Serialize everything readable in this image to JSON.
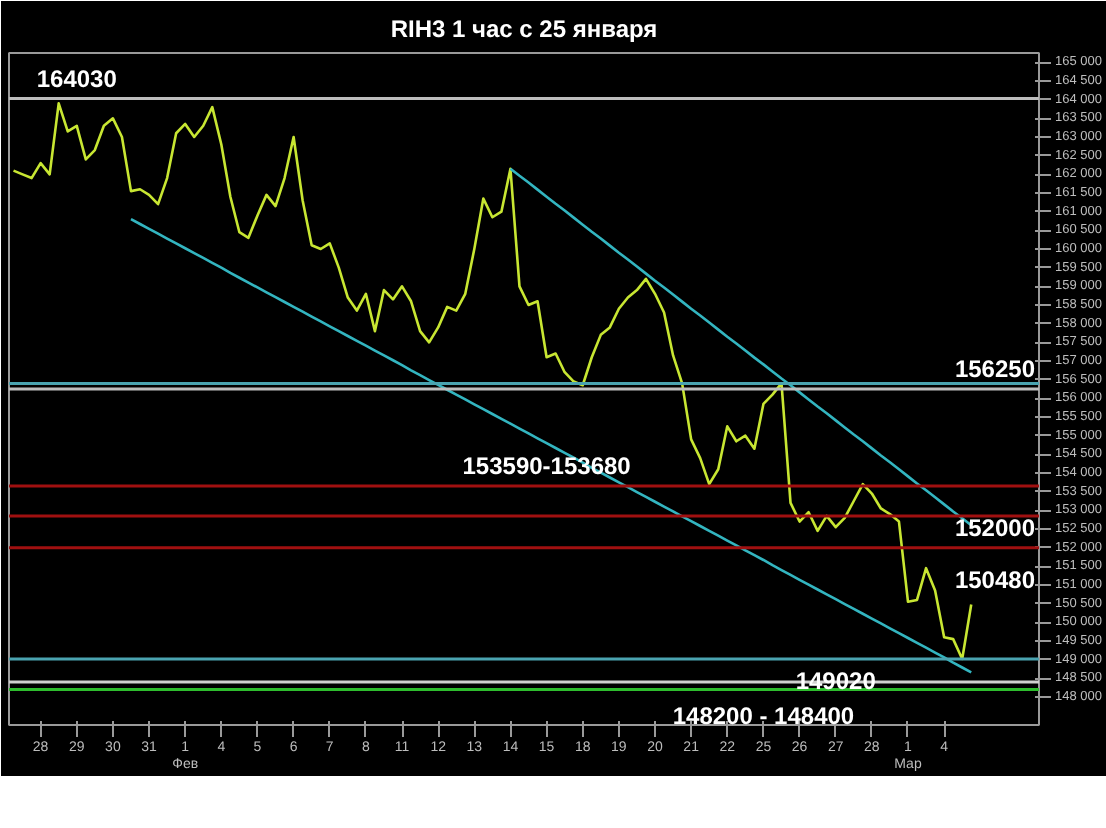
{
  "chart_data": {
    "type": "line",
    "title": "RIH3 1 час с 25 января",
    "categories": [
      null,
      null,
      null,
      "28",
      null,
      null,
      null,
      "29",
      null,
      null,
      null,
      "30",
      null,
      null,
      null,
      "31",
      null,
      null,
      null,
      "1\nФев",
      null,
      null,
      null,
      "4",
      null,
      null,
      null,
      "5",
      null,
      null,
      null,
      "6",
      null,
      null,
      null,
      "7",
      null,
      null,
      null,
      "8",
      null,
      null,
      null,
      "11",
      null,
      null,
      null,
      "12",
      null,
      null,
      null,
      "13",
      null,
      null,
      null,
      "14",
      null,
      null,
      null,
      "15",
      null,
      null,
      null,
      "18",
      null,
      null,
      null,
      "19",
      null,
      null,
      null,
      "20",
      null,
      null,
      null,
      "21",
      null,
      null,
      null,
      "22",
      null,
      null,
      null,
      "25",
      null,
      null,
      null,
      "26",
      null,
      null,
      null,
      "27",
      null,
      null,
      null,
      "28",
      null,
      null,
      null,
      "1\nМар",
      null,
      null,
      null,
      "4",
      null,
      null,
      null
    ],
    "ylim": [
      147250,
      165250
    ],
    "yticks": [
      {
        "value": 148000,
        "label": "148 000"
      },
      {
        "value": 148500,
        "label": "148 500"
      },
      {
        "value": 149000,
        "label": "149 000"
      },
      {
        "value": 149500,
        "label": "149 500"
      },
      {
        "value": 150000,
        "label": "150 000"
      },
      {
        "value": 150500,
        "label": "150 500"
      },
      {
        "value": 151000,
        "label": "151 000"
      },
      {
        "value": 151500,
        "label": "151 500"
      },
      {
        "value": 152000,
        "label": "152 000"
      },
      {
        "value": 152500,
        "label": "152 500"
      },
      {
        "value": 153000,
        "label": "153 000"
      },
      {
        "value": 153500,
        "label": "153 500"
      },
      {
        "value": 154000,
        "label": "154 000"
      },
      {
        "value": 154500,
        "label": "154 500"
      },
      {
        "value": 155000,
        "label": "155 000"
      },
      {
        "value": 155500,
        "label": "155 500"
      },
      {
        "value": 156000,
        "label": "156 000"
      },
      {
        "value": 156500,
        "label": "156 500"
      },
      {
        "value": 157000,
        "label": "157 000"
      },
      {
        "value": 157500,
        "label": "157 500"
      },
      {
        "value": 158000,
        "label": "158 000"
      },
      {
        "value": 158500,
        "label": "158 500"
      },
      {
        "value": 159000,
        "label": "159 000"
      },
      {
        "value": 159500,
        "label": "159 500"
      },
      {
        "value": 160000,
        "label": "160 000"
      },
      {
        "value": 160500,
        "label": "160 500"
      },
      {
        "value": 161000,
        "label": "161 000"
      },
      {
        "value": 161500,
        "label": "161 500"
      },
      {
        "value": 162000,
        "label": "162 000"
      },
      {
        "value": 162500,
        "label": "162 500"
      },
      {
        "value": 163000,
        "label": "163 000"
      },
      {
        "value": 163500,
        "label": "163 500"
      },
      {
        "value": 164000,
        "label": "164 000"
      },
      {
        "value": 164500,
        "label": "164 500"
      },
      {
        "value": 165000,
        "label": "165 000"
      }
    ],
    "series": [
      {
        "color": "#c8e632",
        "values": [
          162100,
          162000,
          161900,
          162300,
          162000,
          163900,
          163150,
          163300,
          162400,
          162650,
          163300,
          163500,
          163000,
          161550,
          161600,
          161450,
          161200,
          161900,
          163100,
          163350,
          163000,
          163300,
          163800,
          162800,
          161400,
          160450,
          160300,
          160900,
          161450,
          161150,
          161900,
          163000,
          161300,
          160100,
          160000,
          160150,
          159500,
          158700,
          158350,
          158800,
          157800,
          158900,
          158650,
          159000,
          158600,
          157800,
          157500,
          157900,
          158450,
          158350,
          158800,
          160000,
          161350,
          160850,
          161000,
          162150,
          159000,
          158500,
          158600,
          157100,
          157200,
          156700,
          156450,
          156350,
          157100,
          157700,
          157900,
          158400,
          158700,
          158900,
          159200,
          158800,
          158300,
          157150,
          156400,
          154900,
          154400,
          153700,
          154100,
          155250,
          154850,
          155000,
          154650,
          155850,
          156100,
          156400,
          153200,
          152700,
          152950,
          152450,
          152850,
          152550,
          152800,
          153250,
          153700,
          153450,
          153050,
          152900,
          152700,
          150550,
          150600,
          151450,
          150850,
          149600,
          149550,
          149020,
          150480
        ]
      },
      {
        "color": "#33b5c0",
        "values": [
          null,
          null,
          null,
          null,
          null,
          null,
          null,
          null,
          null,
          null,
          null,
          null,
          null,
          160800,
          160670,
          160540,
          160410,
          160280,
          160150,
          160020,
          159890,
          159760,
          159630,
          159500,
          159360,
          159230,
          159100,
          158970,
          158840,
          158710,
          158580,
          158450,
          158320,
          158190,
          158060,
          157930,
          157800,
          157670,
          157540,
          157410,
          157280,
          157150,
          157020,
          156890,
          156750,
          156620,
          156490,
          156360,
          156230,
          156100,
          155970,
          155840,
          155710,
          155580,
          155450,
          155320,
          155190,
          155060,
          154930,
          154800,
          154670,
          154540,
          154410,
          154280,
          154140,
          154010,
          153880,
          153750,
          153620,
          153490,
          153360,
          153230,
          153100,
          152970,
          152840,
          152710,
          152580,
          152450,
          152320,
          152190,
          152060,
          151930,
          151800,
          151670,
          151530,
          151400,
          151270,
          151140,
          151010,
          150880,
          150750,
          150620,
          150490,
          150360,
          150230,
          150100,
          149970,
          149840,
          149710,
          149580,
          149450,
          149320,
          149190,
          149060,
          148920,
          148790,
          148660
        ]
      },
      {
        "color": "#33b5c0",
        "values": [
          null,
          null,
          null,
          null,
          null,
          null,
          null,
          null,
          null,
          null,
          null,
          null,
          null,
          null,
          null,
          null,
          null,
          null,
          null,
          null,
          null,
          null,
          null,
          null,
          null,
          null,
          null,
          null,
          null,
          null,
          null,
          null,
          null,
          null,
          null,
          null,
          null,
          null,
          null,
          null,
          null,
          null,
          null,
          null,
          null,
          null,
          null,
          null,
          null,
          null,
          null,
          null,
          null,
          null,
          null,
          162150,
          161960,
          161780,
          161590,
          161400,
          161210,
          161030,
          160840,
          160650,
          160460,
          160280,
          160090,
          159900,
          159720,
          159530,
          159340,
          159150,
          158970,
          158780,
          158590,
          158400,
          158220,
          158030,
          157840,
          157650,
          157470,
          157280,
          157090,
          156910,
          156720,
          156530,
          156350,
          156160,
          155970,
          155780,
          155600,
          155410,
          155220,
          155030,
          154850,
          154660,
          154470,
          154290,
          154100,
          153910,
          153720,
          153540,
          153350,
          153160,
          152970,
          152790,
          152600
        ]
      }
    ],
    "ref_lines": [
      {
        "axis": "y",
        "value": 164030,
        "color": "#bdbdbd"
      },
      {
        "axis": "y",
        "value": 156400,
        "color": "#4aa3b0"
      },
      {
        "axis": "y",
        "value": 156250,
        "color": "#bdbdbd"
      },
      {
        "axis": "y",
        "value": 153650,
        "color": "#a01010"
      },
      {
        "axis": "y",
        "value": 152850,
        "color": "#a01010"
      },
      {
        "axis": "y",
        "value": 152000,
        "color": "#a01010"
      },
      {
        "axis": "y",
        "value": 149020,
        "color": "#4aa3b0"
      },
      {
        "axis": "y",
        "value": 148400,
        "color": "#d0d0d0"
      },
      {
        "axis": "y",
        "value": 148200,
        "color": "#2ebd2e"
      }
    ],
    "annotations": [
      {
        "text": "164030",
        "x": "29",
        "y": 164030
      },
      {
        "text": "156250",
        "y": 156250
      },
      {
        "text": "153590-153680",
        "x": "15",
        "y": 153650
      },
      {
        "text": "152000",
        "y": 152000
      },
      "150480",
      {
        "text": "149020",
        "x": "27",
        "y": 149020
      },
      {
        "text": "148200 - 148400",
        "x": "25",
        "y": 148200
      }
    ]
  }
}
